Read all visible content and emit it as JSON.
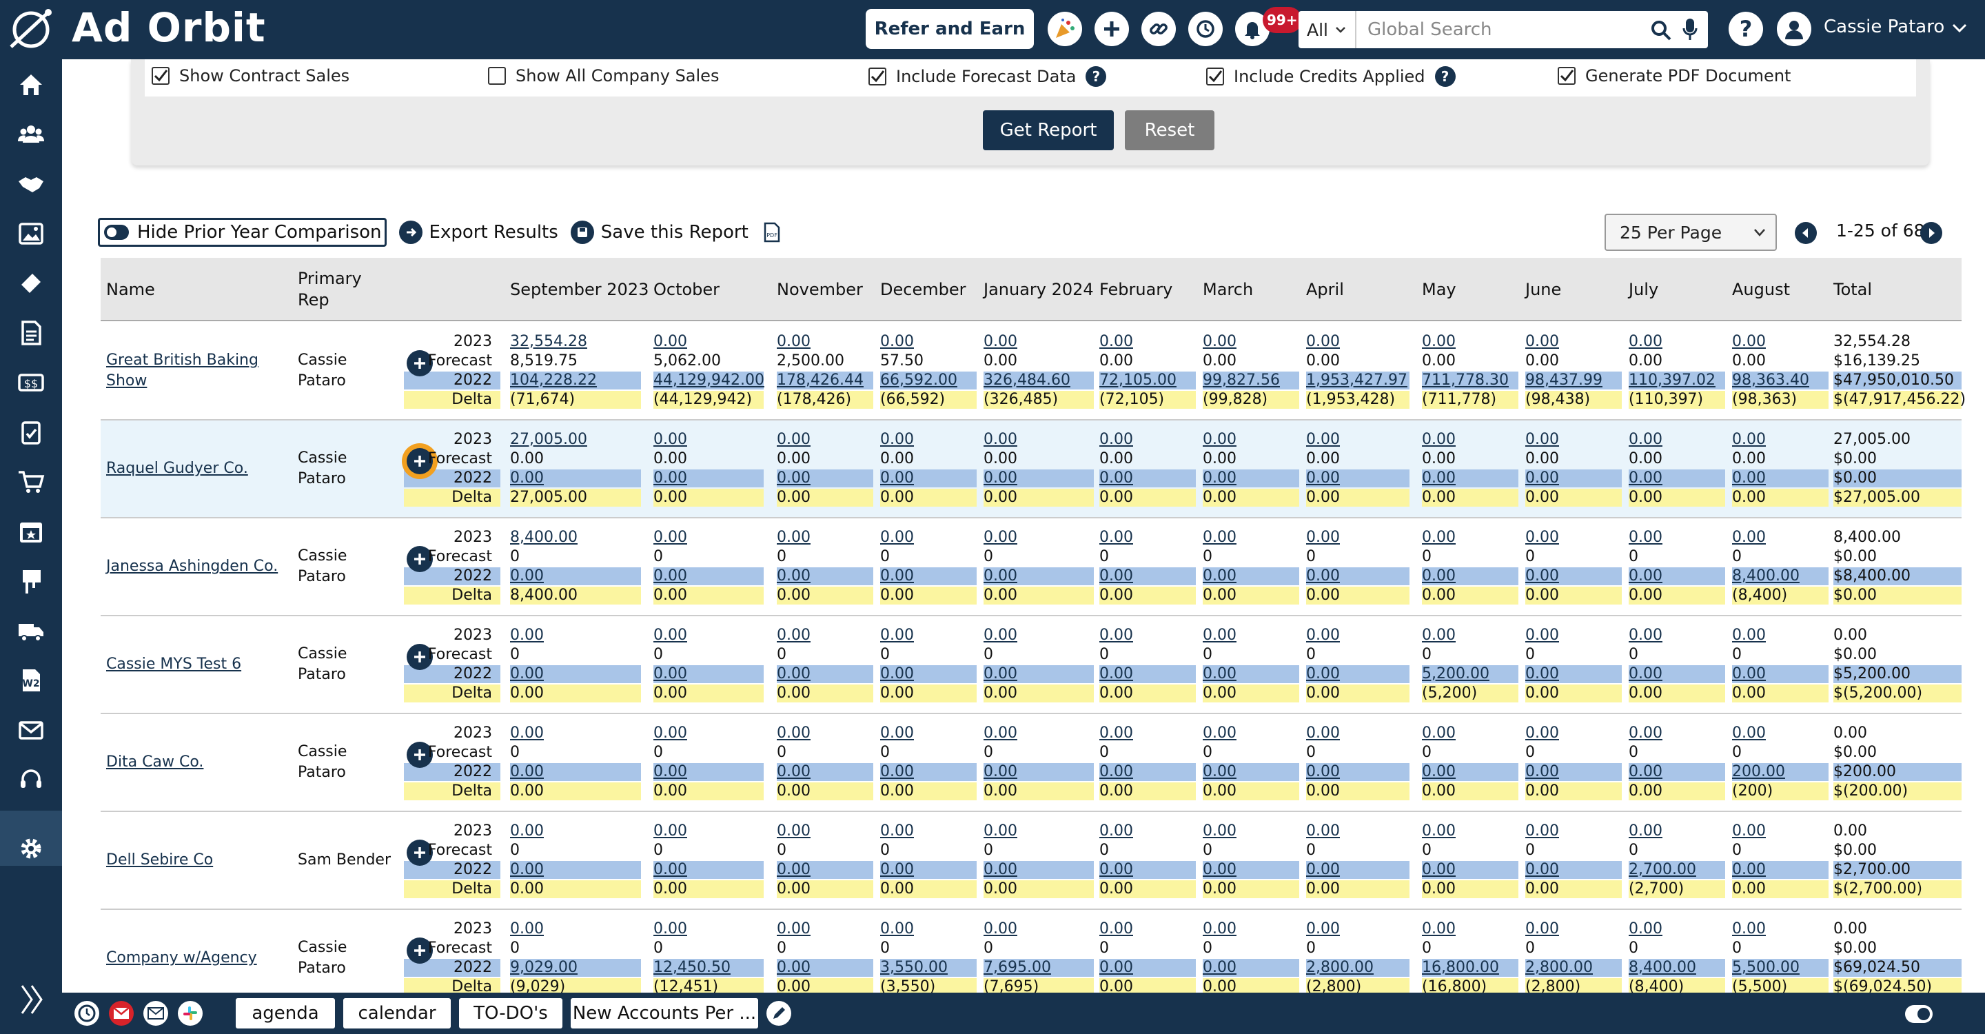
{
  "app": {
    "logo_text": "Ad Orbit"
  },
  "topbar": {
    "refer_label": "Refer and Earn",
    "notif_badge": "99+",
    "search_scope": "All",
    "search_placeholder": "Global Search",
    "user_name": "Cassie Pataro"
  },
  "options": {
    "show_contract_sales": "Show Contract Sales",
    "show_all_company_sales": "Show All Company Sales",
    "include_forecast": "Include Forecast Data",
    "include_credits": "Include Credits Applied",
    "generate_pdf": "Generate PDF Document",
    "get_report": "Get Report",
    "reset": "Reset"
  },
  "toolbar": {
    "hide_prior": "Hide Prior Year Comparison",
    "export": "Export Results",
    "save": "Save this Report",
    "per_page": "25 Per Page",
    "page_info": "1-25 of 68"
  },
  "table": {
    "headers": {
      "name": "Name",
      "rep": "Primary Rep",
      "months": [
        "September 2023",
        "October",
        "November",
        "December",
        "January 2024",
        "February",
        "March",
        "April",
        "May",
        "June",
        "July",
        "August"
      ],
      "total": "Total"
    },
    "row_labels": {
      "y2023": "2023",
      "forecast": "Forecast",
      "y2022": "2022",
      "delta": "Delta"
    },
    "rows": [
      {
        "name": "Great British Baking Show",
        "rep": "Cassie Pataro",
        "y2023": [
          "32,554.28",
          "0.00",
          "0.00",
          "0.00",
          "0.00",
          "0.00",
          "0.00",
          "0.00",
          "0.00",
          "0.00",
          "0.00",
          "0.00"
        ],
        "forecast": [
          "8,519.75",
          "5,062.00",
          "2,500.00",
          "57.50",
          "0.00",
          "0.00",
          "0.00",
          "0.00",
          "0.00",
          "0.00",
          "0.00",
          "0.00"
        ],
        "y2022": [
          "104,228.22",
          "44,129,942.00",
          "178,426.44",
          "66,592.00",
          "326,484.60",
          "72,105.00",
          "99,827.56",
          "1,953,427.97",
          "711,778.30",
          "98,437.99",
          "110,397.02",
          "98,363.40"
        ],
        "delta": [
          "(71,674)",
          "(44,129,942)",
          "(178,426)",
          "(66,592)",
          "(326,485)",
          "(72,105)",
          "(99,828)",
          "(1,953,428)",
          "(711,778)",
          "(98,438)",
          "(110,397)",
          "(98,363)"
        ],
        "total": [
          "32,554.28",
          "$16,139.25",
          "$47,950,010.50",
          "$(47,917,456.22)"
        ]
      },
      {
        "name": "Raquel Gudyer Co.",
        "rep": "Cassie Pataro",
        "y2023": [
          "27,005.00",
          "0.00",
          "0.00",
          "0.00",
          "0.00",
          "0.00",
          "0.00",
          "0.00",
          "0.00",
          "0.00",
          "0.00",
          "0.00"
        ],
        "forecast": [
          "0.00",
          "0.00",
          "0.00",
          "0.00",
          "0.00",
          "0.00",
          "0.00",
          "0.00",
          "0.00",
          "0.00",
          "0.00",
          "0.00"
        ],
        "y2022": [
          "0.00",
          "0.00",
          "0.00",
          "0.00",
          "0.00",
          "0.00",
          "0.00",
          "0.00",
          "0.00",
          "0.00",
          "0.00",
          "0.00"
        ],
        "delta": [
          "27,005.00",
          "0.00",
          "0.00",
          "0.00",
          "0.00",
          "0.00",
          "0.00",
          "0.00",
          "0.00",
          "0.00",
          "0.00",
          "0.00"
        ],
        "total": [
          "27,005.00",
          "$0.00",
          "$0.00",
          "$27,005.00"
        ]
      },
      {
        "name": "Janessa Ashingden Co.",
        "rep": "Cassie Pataro",
        "y2023": [
          "8,400.00",
          "0.00",
          "0.00",
          "0.00",
          "0.00",
          "0.00",
          "0.00",
          "0.00",
          "0.00",
          "0.00",
          "0.00",
          "0.00"
        ],
        "forecast": [
          "0",
          "0",
          "0",
          "0",
          "0",
          "0",
          "0",
          "0",
          "0",
          "0",
          "0",
          "0"
        ],
        "y2022": [
          "0.00",
          "0.00",
          "0.00",
          "0.00",
          "0.00",
          "0.00",
          "0.00",
          "0.00",
          "0.00",
          "0.00",
          "0.00",
          "8,400.00"
        ],
        "delta": [
          "8,400.00",
          "0.00",
          "0.00",
          "0.00",
          "0.00",
          "0.00",
          "0.00",
          "0.00",
          "0.00",
          "0.00",
          "0.00",
          "(8,400)"
        ],
        "total": [
          "8,400.00",
          "$0.00",
          "$8,400.00",
          "$0.00"
        ]
      },
      {
        "name": "Cassie MYS Test 6",
        "rep": "Cassie Pataro",
        "y2023": [
          "0.00",
          "0.00",
          "0.00",
          "0.00",
          "0.00",
          "0.00",
          "0.00",
          "0.00",
          "0.00",
          "0.00",
          "0.00",
          "0.00"
        ],
        "forecast": [
          "0",
          "0",
          "0",
          "0",
          "0",
          "0",
          "0",
          "0",
          "0",
          "0",
          "0",
          "0"
        ],
        "y2022": [
          "0.00",
          "0.00",
          "0.00",
          "0.00",
          "0.00",
          "0.00",
          "0.00",
          "0.00",
          "5,200.00",
          "0.00",
          "0.00",
          "0.00"
        ],
        "delta": [
          "0.00",
          "0.00",
          "0.00",
          "0.00",
          "0.00",
          "0.00",
          "0.00",
          "0.00",
          "(5,200)",
          "0.00",
          "0.00",
          "0.00"
        ],
        "total": [
          "0.00",
          "$0.00",
          "$5,200.00",
          "$(5,200.00)"
        ]
      },
      {
        "name": "Dita Caw Co.",
        "rep": "Cassie Pataro",
        "y2023": [
          "0.00",
          "0.00",
          "0.00",
          "0.00",
          "0.00",
          "0.00",
          "0.00",
          "0.00",
          "0.00",
          "0.00",
          "0.00",
          "0.00"
        ],
        "forecast": [
          "0",
          "0",
          "0",
          "0",
          "0",
          "0",
          "0",
          "0",
          "0",
          "0",
          "0",
          "0"
        ],
        "y2022": [
          "0.00",
          "0.00",
          "0.00",
          "0.00",
          "0.00",
          "0.00",
          "0.00",
          "0.00",
          "0.00",
          "0.00",
          "0.00",
          "200.00"
        ],
        "delta": [
          "0.00",
          "0.00",
          "0.00",
          "0.00",
          "0.00",
          "0.00",
          "0.00",
          "0.00",
          "0.00",
          "0.00",
          "0.00",
          "(200)"
        ],
        "total": [
          "0.00",
          "$0.00",
          "$200.00",
          "$(200.00)"
        ]
      },
      {
        "name": "Dell Sebire Co",
        "rep": "Sam Bender",
        "y2023": [
          "0.00",
          "0.00",
          "0.00",
          "0.00",
          "0.00",
          "0.00",
          "0.00",
          "0.00",
          "0.00",
          "0.00",
          "0.00",
          "0.00"
        ],
        "forecast": [
          "0",
          "0",
          "0",
          "0",
          "0",
          "0",
          "0",
          "0",
          "0",
          "0",
          "0",
          "0"
        ],
        "y2022": [
          "0.00",
          "0.00",
          "0.00",
          "0.00",
          "0.00",
          "0.00",
          "0.00",
          "0.00",
          "0.00",
          "0.00",
          "2,700.00",
          "0.00"
        ],
        "delta": [
          "0.00",
          "0.00",
          "0.00",
          "0.00",
          "0.00",
          "0.00",
          "0.00",
          "0.00",
          "0.00",
          "0.00",
          "(2,700)",
          "0.00"
        ],
        "total": [
          "0.00",
          "$0.00",
          "$2,700.00",
          "$(2,700.00)"
        ]
      },
      {
        "name": "Company w/Agency",
        "rep": "Cassie Pataro",
        "y2023": [
          "0.00",
          "0.00",
          "0.00",
          "0.00",
          "0.00",
          "0.00",
          "0.00",
          "0.00",
          "0.00",
          "0.00",
          "0.00",
          "0.00"
        ],
        "forecast": [
          "0",
          "0",
          "0",
          "0",
          "0",
          "0",
          "0",
          "0",
          "0",
          "0",
          "0",
          "0"
        ],
        "y2022": [
          "9,029.00",
          "12,450.50",
          "0.00",
          "3,550.00",
          "7,695.00",
          "0.00",
          "0.00",
          "2,800.00",
          "16,800.00",
          "2,800.00",
          "8,400.00",
          "5,500.00"
        ],
        "delta": [
          "(9,029)",
          "(12,451)",
          "0.00",
          "(3,550)",
          "(7,695)",
          "0.00",
          "0.00",
          "(2,800)",
          "(16,800)",
          "(2,800)",
          "(8,400)",
          "(5,500)"
        ],
        "total": [
          "0.00",
          "$0.00",
          "$69,024.50",
          "$(69,024.50)"
        ]
      }
    ]
  },
  "bottombar": {
    "tabs": [
      "agenda",
      "calendar",
      "TO-DO's",
      "New Accounts Per ..."
    ]
  },
  "icons": {
    "sidebar": [
      "home-icon",
      "people-icon",
      "handshake-icon",
      "image-icon",
      "ticket-icon",
      "document-icon",
      "money-icon",
      "clipboard-icon",
      "cart-icon",
      "calendar-icon",
      "billboard-icon",
      "truck-icon",
      "w2-icon",
      "mail-icon",
      "headset-icon",
      "gear-icon"
    ]
  },
  "colors": {
    "brand": "#17324d",
    "y2022_band": "#a9c5e8",
    "delta_band": "#fbf5a0",
    "highlight_row": "#e9f4fb",
    "focus": "#f2a020"
  }
}
